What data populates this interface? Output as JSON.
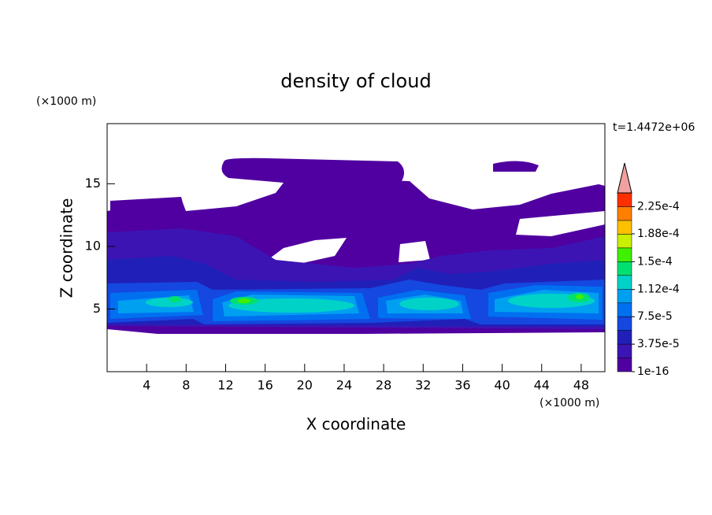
{
  "chart_data": {
    "type": "contour",
    "title": "density of cloud",
    "x_label": "X coordinate",
    "y_label": "Z coordinate",
    "x_unit": "(×1000 m)",
    "y_unit": "(×1000 m)",
    "annotation": "t=1.4472e+06",
    "xlim": [
      0,
      50.4
    ],
    "ylim": [
      0,
      19.8
    ],
    "xticks": [
      4,
      8,
      12,
      16,
      20,
      24,
      28,
      32,
      36,
      40,
      44,
      48
    ],
    "yticks": [
      5,
      10,
      15
    ],
    "levels": [
      1e-16,
      1.875e-05,
      3.75e-05,
      5.625e-05,
      7.5e-05,
      9.375e-05,
      0.000112,
      0.000131,
      0.00015,
      0.000169,
      0.000188,
      0.000206,
      0.000225
    ],
    "colors": [
      "#5000a0",
      "#3c14b4",
      "#2020b8",
      "#1448e0",
      "#0070f0",
      "#00a0f0",
      "#00d2c8",
      "#00e070",
      "#40f000",
      "#c8f000",
      "#ffc000",
      "#ff8000",
      "#ff3000"
    ],
    "over_color": "#f0a0a0",
    "colorbar_ticks": [
      {
        "value": 1e-16,
        "label": "1e-16"
      },
      {
        "value": 3.75e-05,
        "label": "3.75e-5"
      },
      {
        "value": 7.5e-05,
        "label": "7.5e-5"
      },
      {
        "value": 0.000112,
        "label": "1.12e-4"
      },
      {
        "value": 0.00015,
        "label": "1.5e-4"
      },
      {
        "value": 0.000188,
        "label": "1.88e-4"
      },
      {
        "value": 0.000225,
        "label": "2.25e-4"
      }
    ]
  }
}
